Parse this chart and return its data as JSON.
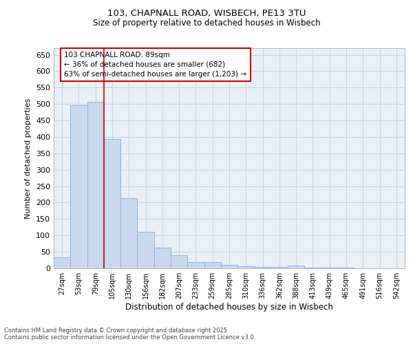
{
  "title_line1": "103, CHAPNALL ROAD, WISBECH, PE13 3TU",
  "title_line2": "Size of property relative to detached houses in Wisbech",
  "xlabel": "Distribution of detached houses by size in Wisbech",
  "ylabel": "Number of detached properties",
  "footnote_line1": "Contains HM Land Registry data © Crown copyright and database right 2025.",
  "footnote_line2": "Contains public sector information licensed under the Open Government Licence v3.0.",
  "annotation_line1": "103 CHAPNALL ROAD: 89sqm",
  "annotation_line2": "← 36% of detached houses are smaller (682)",
  "annotation_line3": "63% of semi-detached houses are larger (1,203) →",
  "bar_color": "#c8d9ee",
  "bar_edge_color": "#8ab4d8",
  "vline_color": "#cc0000",
  "vline_x": 2.5,
  "categories": [
    "27sqm",
    "53sqm",
    "79sqm",
    "105sqm",
    "130sqm",
    "156sqm",
    "182sqm",
    "207sqm",
    "233sqm",
    "259sqm",
    "285sqm",
    "310sqm",
    "336sqm",
    "362sqm",
    "388sqm",
    "413sqm",
    "439sqm",
    "465sqm",
    "491sqm",
    "516sqm",
    "542sqm"
  ],
  "values": [
    33,
    497,
    507,
    393,
    213,
    112,
    62,
    40,
    18,
    18,
    11,
    7,
    5,
    5,
    8,
    3,
    2,
    3,
    1,
    1,
    1
  ],
  "ylim": [
    0,
    670
  ],
  "yticks": [
    0,
    50,
    100,
    150,
    200,
    250,
    300,
    350,
    400,
    450,
    500,
    550,
    600,
    650
  ],
  "grid_color": "#c8d0e0",
  "bg_color": "#eaeff8"
}
